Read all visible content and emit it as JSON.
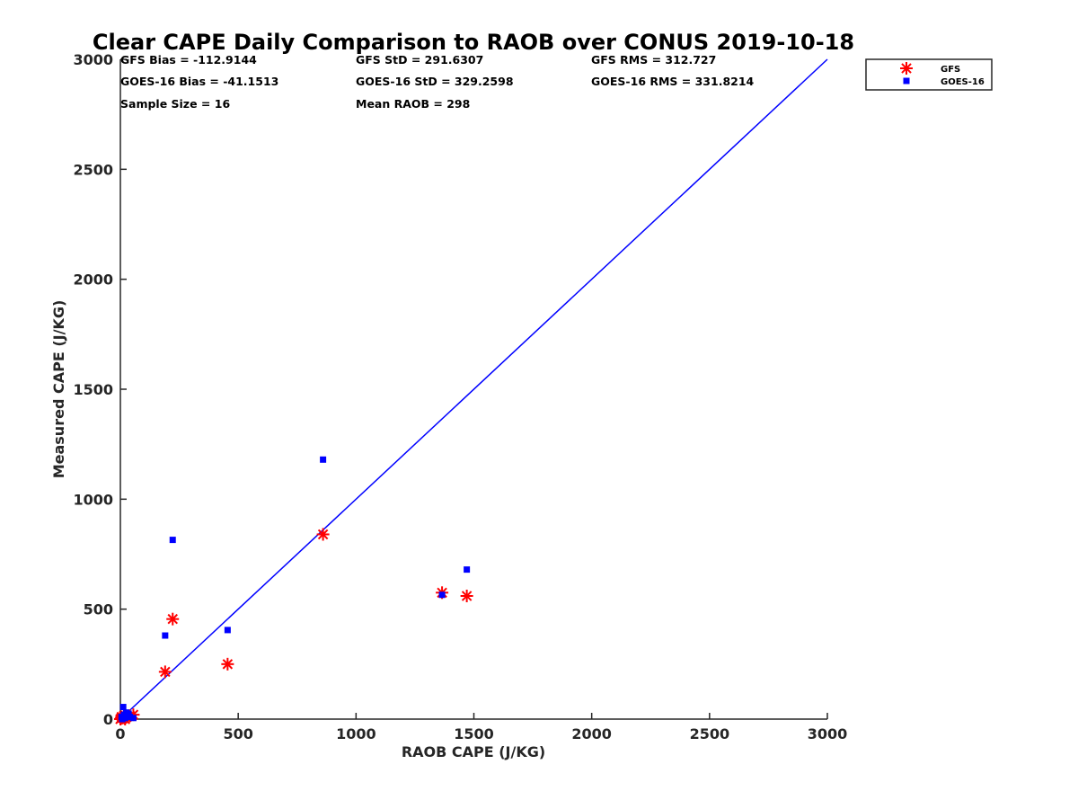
{
  "chart_data": {
    "type": "scatter",
    "title": "Clear CAPE Daily Comparison to RAOB over CONUS 2019-10-18",
    "xlabel": "RAOB CAPE (J/KG)",
    "ylabel": "Measured CAPE (J/KG)",
    "xlim": [
      0,
      3000
    ],
    "ylim": [
      0,
      3000
    ],
    "xticks": [
      "0",
      "500",
      "1000",
      "1500",
      "2000",
      "2500",
      "3000"
    ],
    "yticks": [
      "0",
      "500",
      "1000",
      "1500",
      "2000",
      "2500",
      "3000"
    ],
    "grid": false,
    "legend_position": "top-right, outside plot",
    "reference_line": {
      "x": [
        0,
        3000
      ],
      "y": [
        0,
        3000
      ],
      "color": "#0000ff"
    },
    "stats": [
      [
        "GFS Bias = -112.9144",
        "GFS StD = 291.6307",
        "GFS RMS = 312.727"
      ],
      [
        "GOES-16 Bias = -41.1513",
        "GOES-16 StD = 329.2598",
        "GOES-16 RMS = 331.8214"
      ],
      [
        "Sample Size = 16",
        "Mean RAOB = 298"
      ]
    ],
    "series": [
      {
        "name": "GFS",
        "marker": "asterisk",
        "color": "#ff0000",
        "x": [
          0,
          5,
          10,
          15,
          20,
          25,
          30,
          55,
          190,
          222,
          455,
          860,
          1365,
          1470,
          3,
          40
        ],
        "y": [
          0,
          10,
          5,
          15,
          0,
          8,
          12,
          20,
          215,
          455,
          250,
          840,
          575,
          560,
          3,
          15
        ]
      },
      {
        "name": "GOES-16",
        "marker": "square",
        "color": "#0000ff",
        "x": [
          5,
          12,
          15,
          20,
          25,
          30,
          40,
          55,
          190,
          222,
          455,
          860,
          1365,
          1470,
          8,
          35
        ],
        "y": [
          10,
          55,
          20,
          5,
          30,
          15,
          10,
          5,
          380,
          815,
          405,
          1180,
          565,
          680,
          0,
          25
        ]
      }
    ]
  }
}
